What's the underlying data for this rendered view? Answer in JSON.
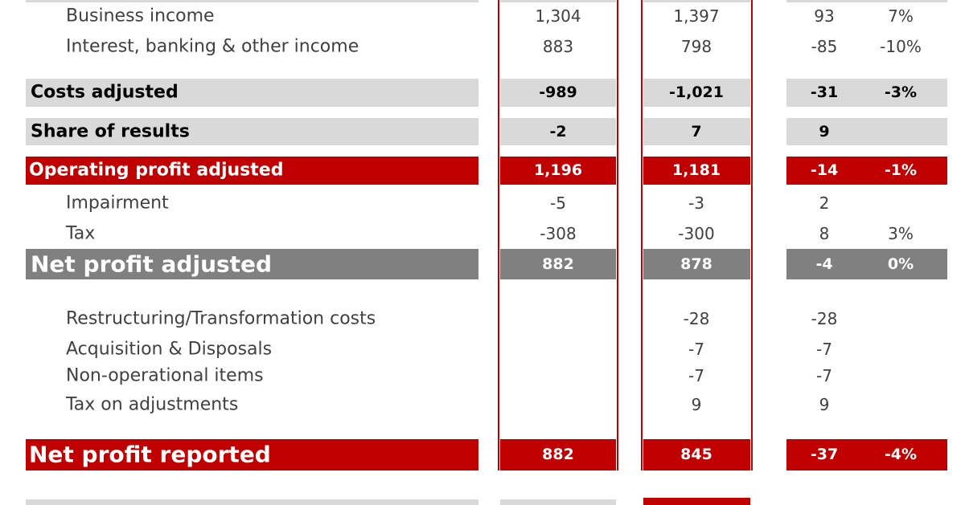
{
  "table": {
    "rows": [
      {
        "label": "Business income",
        "cells": [
          "1,304",
          "1,397",
          "93",
          "7%"
        ]
      },
      {
        "label": "Interest, banking & other income",
        "cells": [
          "883",
          "798",
          "-85",
          "-10%"
        ]
      },
      {
        "label": "Costs adjusted",
        "cells": [
          "-989",
          "-1,021",
          "-31",
          "-3%"
        ]
      },
      {
        "label": "Share of results",
        "cells": [
          "-2",
          "7",
          "9",
          null
        ]
      },
      {
        "label": "Operating profit adjusted",
        "cells": [
          "1,196",
          "1,181",
          "-14",
          "-1%"
        ]
      },
      {
        "label": "Impairment",
        "cells": [
          "-5",
          "-3",
          "2",
          null
        ]
      },
      {
        "label": "Tax",
        "cells": [
          "-308",
          "-300",
          "8",
          "3%"
        ]
      },
      {
        "label": "Net profit adjusted",
        "cells": [
          "882",
          "878",
          "-4",
          "0%"
        ]
      },
      {
        "label": "Restructuring/Transformation costs",
        "cells": [
          null,
          "-28",
          "-28",
          null
        ]
      },
      {
        "label": "Acquisition & Disposals",
        "cells": [
          null,
          "-7",
          "-7",
          null
        ]
      },
      {
        "label": "Non-operational items",
        "cells": [
          null,
          "-7",
          "-7",
          null
        ]
      },
      {
        "label": "Tax on adjustments",
        "cells": [
          null,
          "9",
          "9",
          null
        ]
      },
      {
        "label": "Net profit reported",
        "cells": [
          "882",
          "845",
          "-37",
          "-4%"
        ]
      }
    ]
  }
}
